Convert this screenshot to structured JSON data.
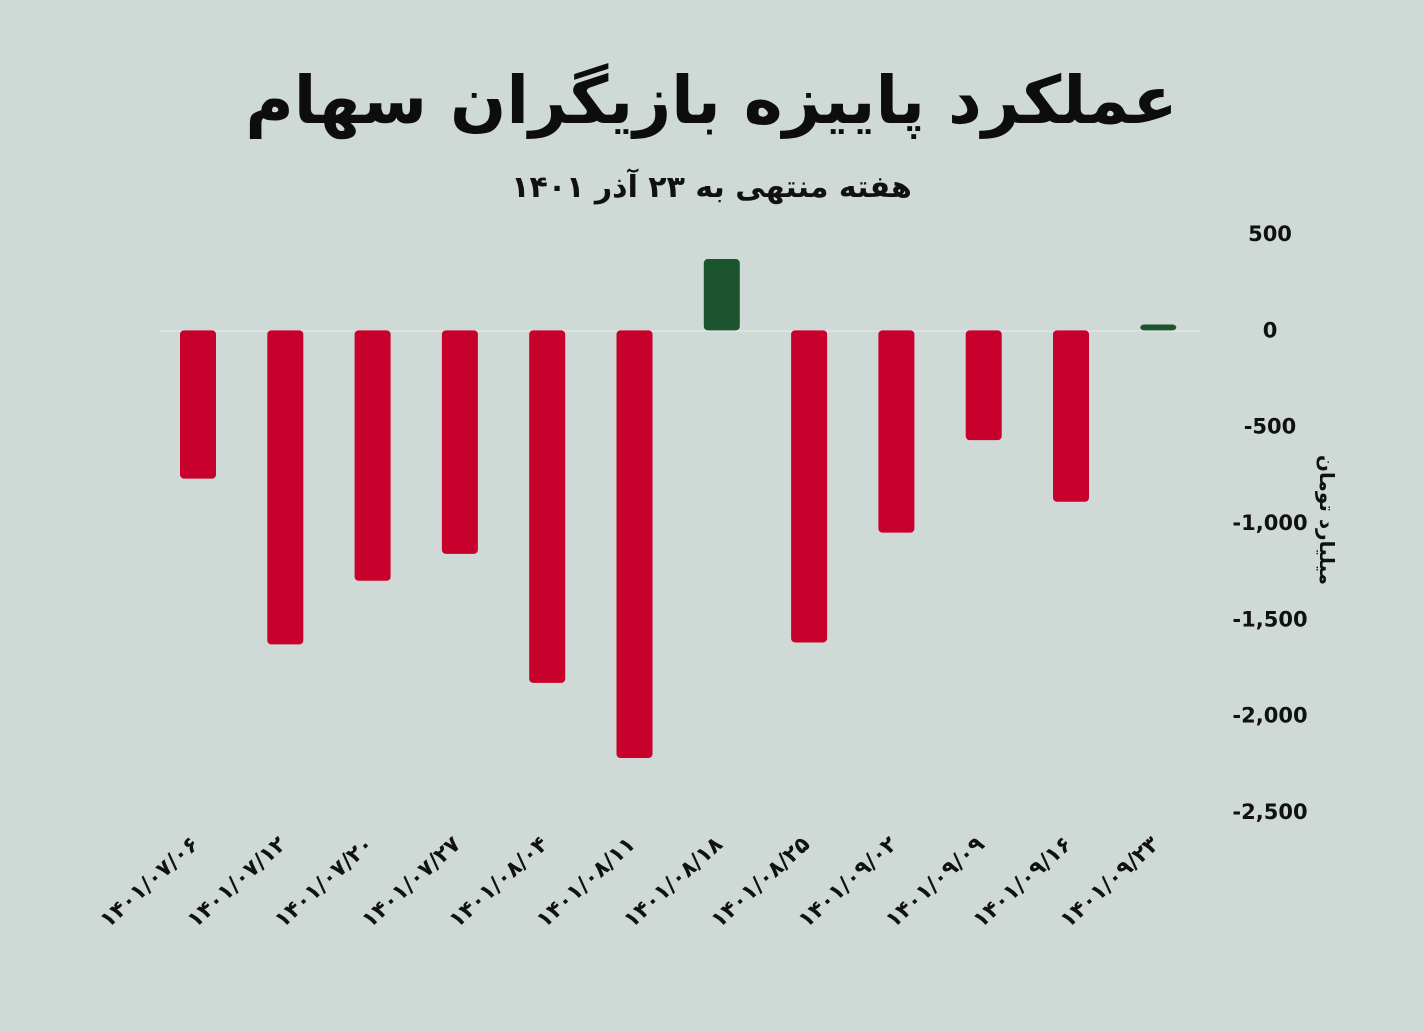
{
  "chart_data": {
    "type": "bar",
    "title": "عملکرد پاییزه بازیگران سهام",
    "subtitle": "هفته منتهی به ۲۳ آذر ۱۴۰۱",
    "ylabel": "میلیارد تومان",
    "ylim": [
      -2500,
      500
    ],
    "yticks": [
      500,
      0,
      -500,
      -1000,
      -1500,
      -2000,
      -2500
    ],
    "ytick_labels": [
      "500",
      "0",
      "-500",
      "-1,000",
      "-1,500",
      "-2,000",
      "-2,500"
    ],
    "categories": [
      "۱۴۰۱/۰۷/۰۶",
      "۱۴۰۱/۰۷/۱۲",
      "۱۴۰۱/۰۷/۲۰",
      "۱۴۰۱/۰۷/۲۷",
      "۱۴۰۱/۰۸/۰۴",
      "۱۴۰۱/۰۸/۱۱",
      "۱۴۰۱/۰۸/۱۸",
      "۱۴۰۱/۰۸/۲۵",
      "۱۴۰۱/۰۹/۰۲",
      "۱۴۰۱/۰۹/۰۹",
      "۱۴۰۱/۰۹/۱۶",
      "۱۴۰۱/۰۹/۲۳"
    ],
    "values": [
      -770,
      -1630,
      -1300,
      -1160,
      -1830,
      -2220,
      370,
      -1620,
      -1050,
      -570,
      -890,
      30
    ],
    "colors": {
      "positive": "#1c5430",
      "negative": "#c8002c"
    },
    "grid": false,
    "legend": "none"
  }
}
